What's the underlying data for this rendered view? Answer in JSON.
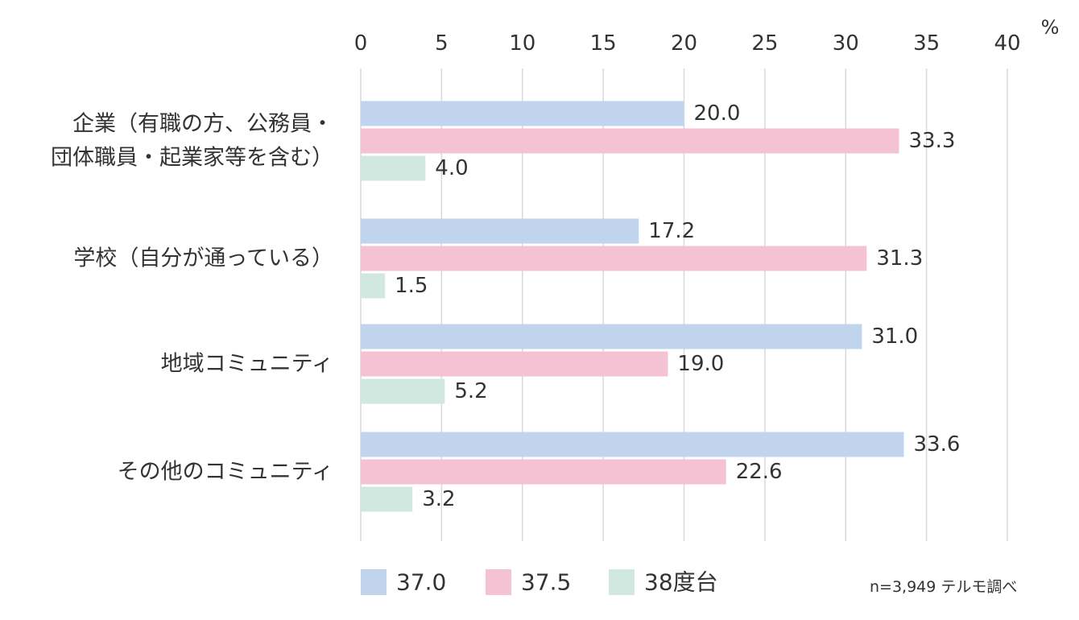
{
  "chart_data": {
    "type": "bar",
    "orientation": "horizontal",
    "unit": "%",
    "xlim": [
      0,
      40
    ],
    "ticks": [
      0,
      5,
      10,
      15,
      20,
      25,
      30,
      35,
      40
    ],
    "grid": true,
    "legend_position": "bottom-left",
    "categories": [
      [
        "企業（有職の方、公務員・",
        "団体職員・起業家等を含む）"
      ],
      [
        "学校（自分が通っている）"
      ],
      [
        "地域コミュニティ"
      ],
      [
        "その他のコミュニティ"
      ]
    ],
    "series": [
      {
        "name": "37.0",
        "color": "#c0d4ee",
        "values": [
          20.0,
          17.2,
          31.0,
          33.6
        ]
      },
      {
        "name": "37.5",
        "color": "#f5c2d3",
        "values": [
          33.3,
          31.3,
          19.0,
          22.6
        ]
      },
      {
        "name": "38度台",
        "color": "#d0e8df",
        "values": [
          4.0,
          1.5,
          5.2,
          3.2
        ]
      }
    ],
    "note": "n=3,949 テルモ調べ"
  }
}
